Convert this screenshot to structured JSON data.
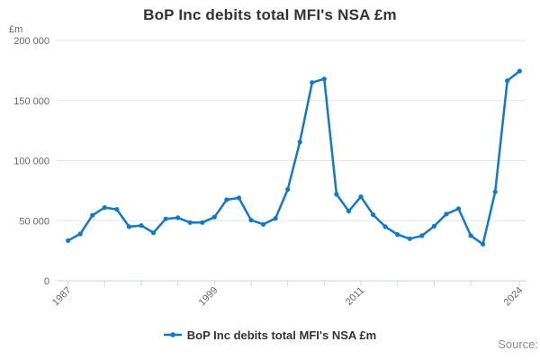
{
  "colors": {
    "line": "#1379c4",
    "grid": "#e6e6e6",
    "axis": "#ccd6eb",
    "tick_text": "#666666",
    "title_text": "#333333",
    "legend_text": "#333333",
    "source_text": "#8c8c8c"
  },
  "chart_data": {
    "type": "line",
    "title": "BoP Inc debits total MFI's NSA £m",
    "unit_label": "£m",
    "legend_label": "BoP Inc debits total MFI's NSA £m",
    "source_label": "Source:",
    "xlabel": "",
    "ylabel": "£m",
    "ylim": [
      0,
      200000
    ],
    "grid": true,
    "legend_position": "bottom",
    "x": [
      1987,
      1988,
      1989,
      1990,
      1991,
      1992,
      1993,
      1994,
      1995,
      1996,
      1997,
      1998,
      1999,
      2000,
      2001,
      2002,
      2003,
      2004,
      2005,
      2006,
      2007,
      2008,
      2009,
      2010,
      2011,
      2012,
      2013,
      2014,
      2015,
      2016,
      2017,
      2018,
      2019,
      2020,
      2021,
      2022,
      2023,
      2024
    ],
    "series": [
      {
        "name": "BoP Inc debits total MFI's NSA £m",
        "values": [
          33500,
          39000,
          54500,
          61000,
          59500,
          45000,
          46000,
          40000,
          51500,
          52500,
          48500,
          48500,
          53000,
          67500,
          69000,
          50500,
          47000,
          52000,
          76000,
          115500,
          165000,
          168000,
          72000,
          58000,
          70000,
          55000,
          45000,
          38500,
          35000,
          37500,
          45500,
          55500,
          60000,
          37500,
          30500,
          74000,
          166500,
          174500
        ]
      }
    ],
    "y_ticks": [
      {
        "value": 0,
        "label": "0"
      },
      {
        "value": 50000,
        "label": "50 000"
      },
      {
        "value": 100000,
        "label": "100 000"
      },
      {
        "value": 150000,
        "label": "150 000"
      },
      {
        "value": 200000,
        "label": "200 000"
      }
    ],
    "x_ticks": [
      1987,
      1990,
      1993,
      1996,
      1999,
      2002,
      2005,
      2008,
      2011,
      2014,
      2017,
      2020,
      2024
    ],
    "x_tick_labels": [
      "1987",
      "1999",
      "2011",
      "2024"
    ],
    "x_tick_labeled_years": [
      1987,
      1999,
      2011,
      2024
    ]
  }
}
